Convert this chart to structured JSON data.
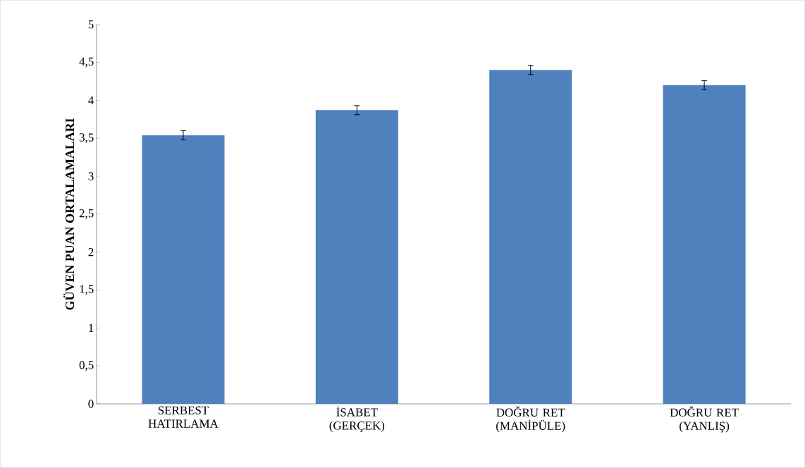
{
  "chart_data": {
    "type": "bar",
    "ylabel": "GÜVEN PUAN ORTALAMALARI",
    "categories": [
      "SERBEST HATIRLAMA",
      "İSABET (GERÇEK)",
      "DOĞRU RET (MANİPÜLE)",
      "DOĞRU RET (YANLIŞ)"
    ],
    "values": [
      3.54,
      3.87,
      4.4,
      4.2
    ],
    "errors": [
      0.06,
      0.06,
      0.06,
      0.06
    ],
    "color": "#4f81bd",
    "ylim": [
      0,
      5
    ],
    "yticks": [
      0,
      {
        "value": 0.5,
        "label": "0,5"
      },
      1,
      {
        "value": 1.5,
        "label": "1,5"
      },
      2,
      {
        "value": 2.5,
        "label": "2,5"
      },
      3,
      {
        "value": 3.5,
        "label": "3,5"
      },
      4,
      {
        "value": 4.5,
        "label": "4,5"
      },
      5
    ],
    "grid": false
  }
}
